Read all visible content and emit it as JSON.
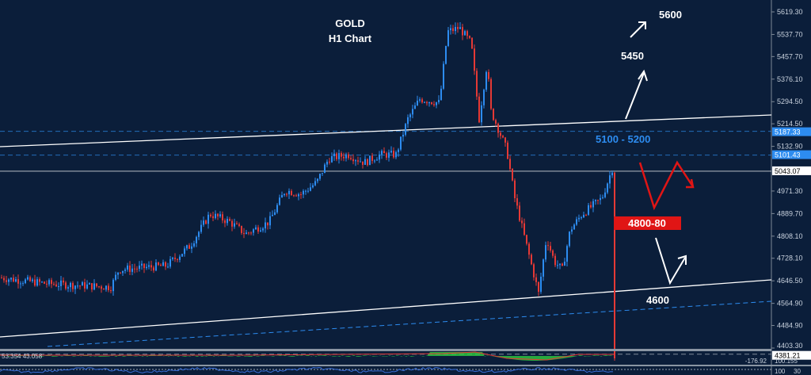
{
  "chart_data": {
    "type": "candlestick",
    "symbol": "GOLD",
    "timeframe": "H1 Chart",
    "ylim": [
      4381.21,
      5650
    ],
    "y_ticks": [
      "5619.30",
      "5537.70",
      "5457.70",
      "5376.10",
      "5294.50",
      "5214.50",
      "5132.90",
      "4971.30",
      "4889.70",
      "4808.10",
      "4728.10",
      "4646.50",
      "4564.90",
      "4484.90",
      "4403.30"
    ],
    "price_path": [
      4658,
      4636,
      4624,
      4687,
      4701,
      4773,
      4888,
      4860,
      4816,
      4860,
      4974,
      4960,
      5003,
      5089,
      5103,
      5074,
      5103,
      5103,
      5232,
      5304,
      5290,
      5548,
      5562,
      5505,
      5232,
      5433,
      5261,
      5118,
      4945,
      4773,
      4601,
      4802,
      4716,
      4687,
      4831,
      4888,
      4945,
      5069
    ],
    "levels": [
      {
        "price": 5187.33,
        "label": "5187.33",
        "style": "dashed",
        "color": "#2d8cf0"
      },
      {
        "price": 5101.43,
        "label": "5101.43",
        "style": "dashed",
        "color": "#2d8cf0"
      },
      {
        "price": 5043.07,
        "label": "5043.07",
        "style": "solid",
        "color": "#ffffff"
      },
      {
        "price": 4381.21,
        "label": "4381.21",
        "style": "dashed",
        "color": "#9aa4b0"
      }
    ],
    "annotations": {
      "t5600": "5600",
      "t5450": "5450",
      "zone": "5100 - 5200",
      "support": "4800-80",
      "t4600": "4600"
    },
    "colors": {
      "bull": "#2d8cf0",
      "bear": "#e53935",
      "bg": "#0b1e3a"
    }
  },
  "indicators": {
    "osc_values": "53.354 43.058",
    "osc_axis_top": "100.155",
    "osc_axis_bottom": "-176.92",
    "rsi_top": "100",
    "rsi_bottom": "30"
  }
}
